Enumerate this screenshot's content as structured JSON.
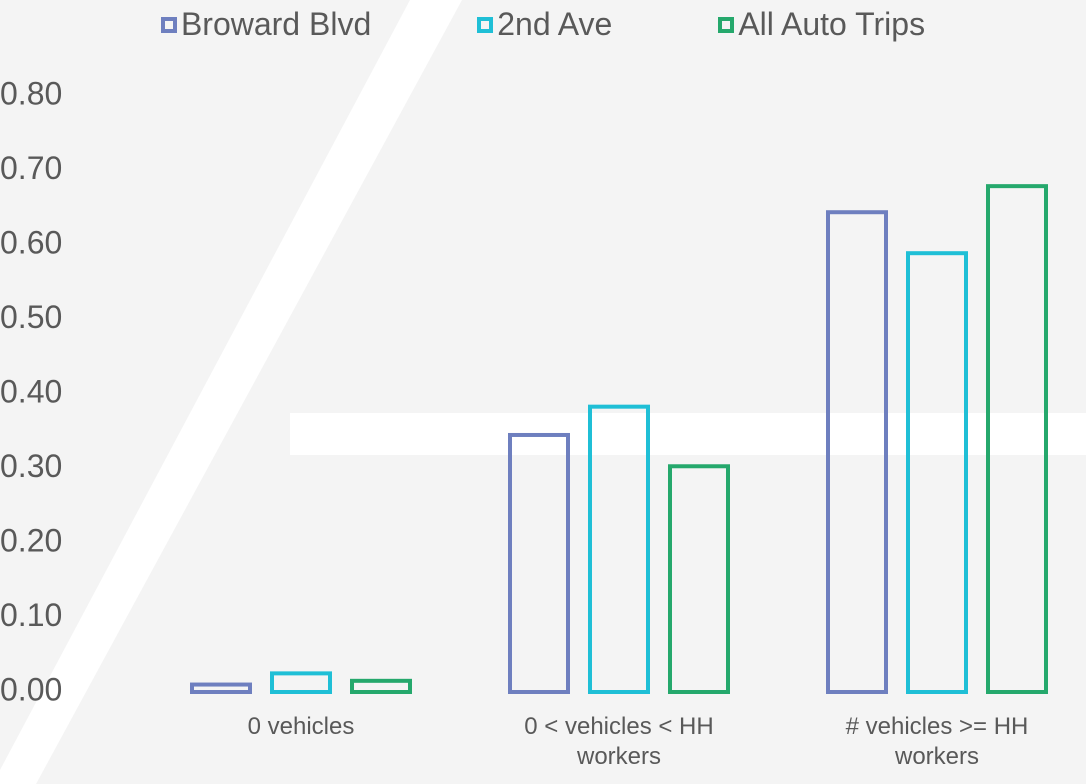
{
  "chart_data": {
    "type": "bar",
    "categories": [
      "0 vehicles",
      "0 < vehicles < HH workers",
      "# vehicles >= HH workers"
    ],
    "series": [
      {
        "name": "Broward Blvd",
        "color": "#6e7fbf",
        "values": [
          0.01,
          0.345,
          0.644
        ]
      },
      {
        "name": "2nd Ave",
        "color": "#1fbfd6",
        "values": [
          0.025,
          0.383,
          0.589
        ]
      },
      {
        "name": "All Auto Trips",
        "color": "#25a86c",
        "values": [
          0.015,
          0.303,
          0.679
        ]
      }
    ],
    "ylim": [
      0,
      0.8
    ],
    "yticks": [
      {
        "value": 0,
        "label": "0.00"
      },
      {
        "value": 0.1,
        "label": "0.10"
      },
      {
        "value": 0.2,
        "label": "0.20"
      },
      {
        "value": 0.3,
        "label": "0.30"
      },
      {
        "value": 0.4,
        "label": "0.40"
      },
      {
        "value": 0.5,
        "label": "0.50"
      },
      {
        "value": 0.6,
        "label": "0.60"
      },
      {
        "value": 0.7,
        "label": "0.70"
      },
      {
        "value": 0.8,
        "label": "0.80"
      }
    ],
    "grid": false,
    "legend": "top",
    "bar_style": "outline"
  }
}
